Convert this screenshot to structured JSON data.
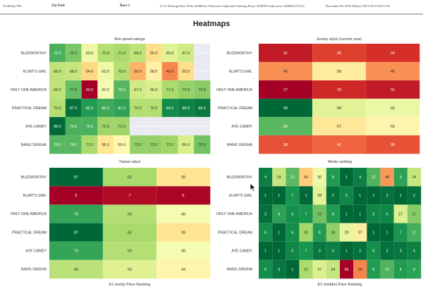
{
  "header": {
    "app_name": "PickPony PPs",
    "track": "Zia Park",
    "race": "Race 1",
    "race_conditions": "6 1/2 Furlongs Dirt OClm 20000n2x Allowance Optional Claiming Purse: $55000 Claim price: $20000 (74.31)",
    "date_info": "December 08, 2025 (Mon) 2:05/1:05/12:05/11:05"
  },
  "page_title": "Heatmaps",
  "horses": [
    "BUZZWORTHY",
    "KLIMT'S GIRL",
    "ONLY ONE AMERICA",
    "PRACTICAL DREAM",
    "AYE CANDY",
    "NANG SINGHA"
  ],
  "colors": {
    "missing_cell": "#eaeaf2",
    "colormap": "RdYlGn"
  },
  "chart_data": [
    {
      "id": "bris",
      "type": "heatmap",
      "title": "Bris speed ratings",
      "rows": [
        "BUZZWORTHY",
        "KLIMT'S GIRL",
        "ONLY ONE AMERICA",
        "PRACTICAL DREAM",
        "AYE CANDY",
        "NANG SINGHA"
      ],
      "format": "decimal1",
      "vmin": 33,
      "vmax": 88,
      "values": [
        [
          79,
          75,
          63,
          70,
          71,
          69,
          55,
          65,
          67,
          null
        ],
        [
          69,
          68,
          54,
          63,
          70,
          50,
          58,
          46,
          55,
          null
        ],
        [
          69,
          77,
          33,
          62,
          78,
          67,
          66,
          71,
          73,
          74
        ],
        [
          70,
          87,
          82,
          80,
          81,
          70,
          70,
          84,
          85,
          86
        ],
        [
          88,
          79,
          79,
          72,
          72,
          null,
          null,
          null,
          null,
          null
        ],
        [
          78,
          78,
          71,
          56,
          59,
          73,
          73,
          72,
          66,
          76
        ]
      ],
      "xlabel": "",
      "ylabel": ""
    },
    {
      "id": "jockey",
      "type": "heatmap",
      "title": "Jockey w/p/s (current year)",
      "rows": [
        "BUZZWORTHY",
        "KLIMT'S GIRL",
        "ONLY ONE AMERICA",
        "PRACTICAL DREAM",
        "AYE CANDY",
        "NANG SINGHA"
      ],
      "format": "integer",
      "vmin": 27,
      "vmax": 98,
      "values": [
        [
          31,
          36,
          34
        ],
        [
          45,
          58,
          45
        ],
        [
          27,
          33,
          31
        ],
        [
          98,
          68,
          66
        ],
        [
          85,
          57,
          60
        ],
        [
          38,
          40,
          38
        ]
      ],
      "xlabel": "",
      "ylabel": ""
    },
    {
      "id": "trainer",
      "type": "heatmap",
      "title": "Trainer w/p/s",
      "rows": [
        "BUZZWORTHY",
        "KLIMT'S GIRL",
        "ONLY ONE AMERICA",
        "PRACTICAL DREAM",
        "AYE CANDY",
        "NANG SINGHA"
      ],
      "format": "integer",
      "vmin": 5,
      "vmax": 87,
      "values": [
        [
          87,
          62,
          39
        ],
        [
          5,
          7,
          6
        ],
        [
          76,
          60,
          48
        ],
        [
          87,
          62,
          39
        ],
        [
          76,
          60,
          48
        ],
        [
          59,
          53,
          43
        ]
      ],
      "xlabel": "E1 (early) Pace Ranking",
      "ylabel": ""
    },
    {
      "id": "works",
      "type": "heatmap",
      "title": "Works ranking",
      "rows": [
        "BUZZWORTHY",
        "KLIMT'S GIRL",
        "ONLY ONE AMERICA",
        "PRACTICAL DREAM",
        "AYE CANDY",
        "NANG SINGHA"
      ],
      "format": "integer",
      "reverse": true,
      "vmin": 1,
      "vmax": 65,
      "values": [
        [
          4,
          24,
          13,
          42,
          30,
          8,
          1,
          4,
          12,
          48,
          9,
          24
        ],
        [
          1,
          1,
          7,
          1,
          28,
          2,
          5,
          1,
          1,
          2,
          1,
          2
        ],
        [
          2,
          9,
          6,
          7,
          15,
          8,
          1,
          1,
          5,
          5,
          27,
          17
        ],
        [
          6,
          1,
          6,
          20,
          8,
          18,
          29,
          37,
          1,
          1,
          7,
          11
        ],
        [
          1,
          1,
          5,
          7,
          3,
          4,
          1,
          2,
          6,
          2,
          3,
          4
        ],
        [
          6,
          3,
          1,
          21,
          27,
          24,
          65,
          50,
          8,
          12,
          8,
          9
        ]
      ],
      "xlabel": "E2 (middle) Pace Ranking",
      "ylabel": ""
    }
  ]
}
